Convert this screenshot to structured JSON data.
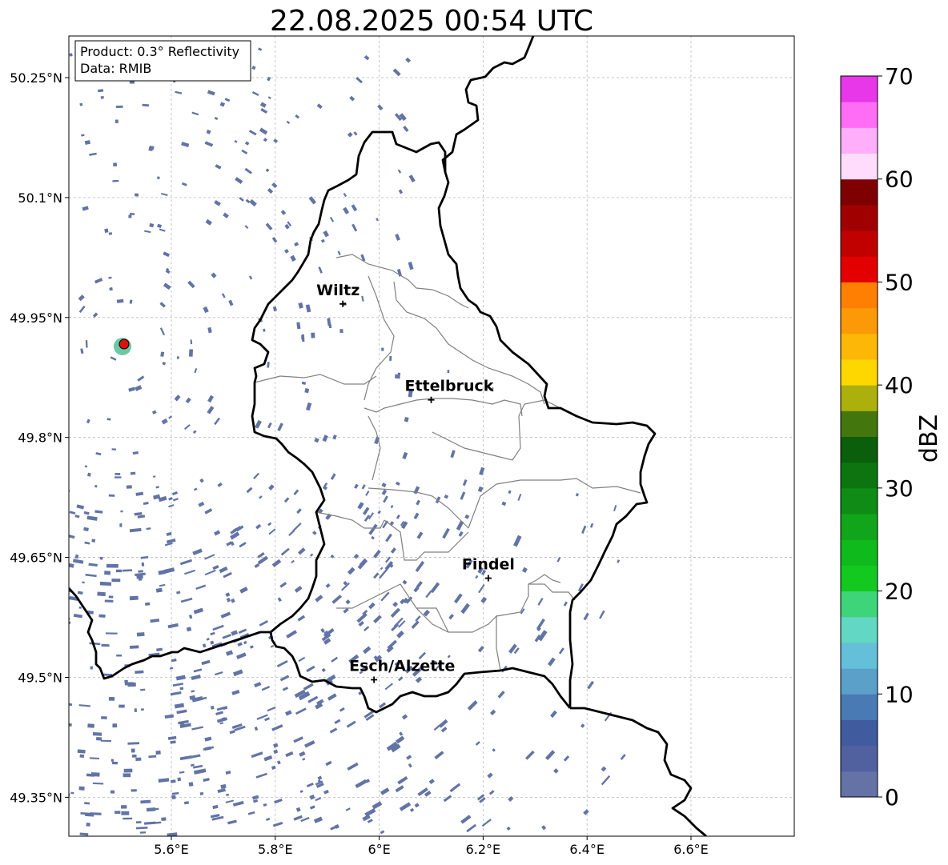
{
  "title": "22.08.2025 00:54 UTC",
  "info_box": {
    "product": "Product: 0.3° Reflectivity",
    "data": "Data: RMIB"
  },
  "axes": {
    "lon_ticks": [
      "5.6°E",
      "5.8°E",
      "6°E",
      "6.2°E",
      "6.4°E",
      "6.6°E"
    ],
    "lon_values": [
      5.6,
      5.8,
      6.0,
      6.2,
      6.4,
      6.6
    ],
    "lat_ticks": [
      "50.25°N",
      "50.1°N",
      "49.95°N",
      "49.8°N",
      "49.65°N",
      "49.5°N",
      "49.35°N"
    ],
    "lat_values": [
      50.25,
      50.1,
      49.95,
      49.8,
      49.65,
      49.5,
      49.35
    ],
    "lon_range": [
      5.4,
      6.8
    ],
    "lat_range": [
      49.3,
      50.3
    ],
    "grid": true
  },
  "cities": [
    {
      "name": "Wiltz",
      "lon": 5.93,
      "lat": 49.967
    },
    {
      "name": "Ettelbruck",
      "lon": 6.1,
      "lat": 49.847
    },
    {
      "name": "Findel",
      "lon": 6.21,
      "lat": 49.624
    },
    {
      "name": "Esch/Alzette",
      "lon": 5.99,
      "lat": 49.497
    }
  ],
  "radar_site": {
    "lon": 5.505,
    "lat": 49.914,
    "color": "#e01010"
  },
  "colorbar": {
    "label": "dBZ",
    "ticks": [
      "0",
      "10",
      "20",
      "30",
      "40",
      "50",
      "60",
      "70"
    ],
    "tick_values": [
      0,
      10,
      20,
      30,
      40,
      50,
      60,
      70
    ],
    "range": [
      0,
      70
    ],
    "colors": [
      "#6572a6",
      "#5161a0",
      "#415c9e",
      "#4a7ab3",
      "#5aa0c9",
      "#63c0d8",
      "#62d7c3",
      "#3ed47a",
      "#13c920",
      "#0fba1c",
      "#10a51b",
      "#0f8c15",
      "#0c7510",
      "#0a5e0c",
      "#44760e",
      "#acb00c",
      "#ffd700",
      "#fdb707",
      "#fc9906",
      "#fe7f02",
      "#e20000",
      "#c10000",
      "#a00000",
      "#7e0000",
      "#ffdcfb",
      "#ffaff9",
      "#ff6df5",
      "#e837e9"
    ]
  },
  "echo_color": "#6274a5"
}
